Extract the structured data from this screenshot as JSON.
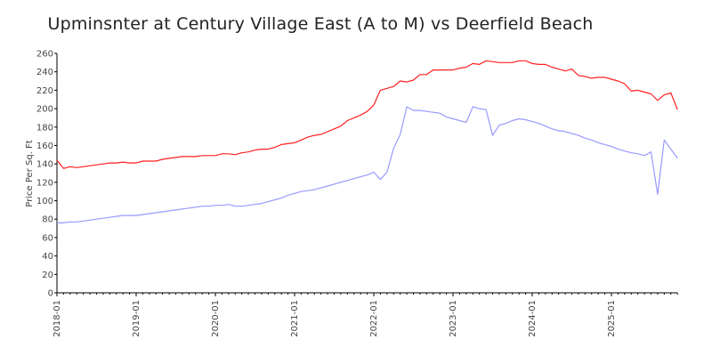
{
  "chart_data": {
    "type": "line",
    "title": "Upminsnter at Century Village East (A to M) vs Deerfield Beach",
    "xlabel": "",
    "ylabel": "Price Per Sq. Ft",
    "ylim": [
      0,
      260
    ],
    "yticks": [
      0,
      20,
      40,
      60,
      80,
      100,
      120,
      140,
      160,
      180,
      200,
      220,
      240,
      260
    ],
    "xticks": [
      "2018-01",
      "2019-01",
      "2020-01",
      "2021-01",
      "2022-01",
      "2023-01",
      "2024-01",
      "2025-01"
    ],
    "x_start": "2018-01",
    "x_interval": "monthly",
    "grid": false,
    "legend": "none",
    "series": [
      {
        "name": "red-series",
        "color": "#ff2020",
        "values": [
          144,
          135,
          137,
          136,
          137,
          138,
          139,
          140,
          141,
          141,
          142,
          141,
          141,
          143,
          143,
          143,
          145,
          146,
          147,
          148,
          148,
          148,
          149,
          149,
          149,
          151,
          151,
          150,
          152,
          153,
          155,
          156,
          156,
          158,
          161,
          162,
          163,
          166,
          169,
          171,
          172,
          175,
          178,
          181,
          187,
          190,
          193,
          197,
          204,
          220,
          222,
          224,
          230,
          229,
          231,
          237,
          237,
          242,
          242,
          242,
          242,
          244,
          245,
          249,
          248,
          252,
          251,
          250,
          250,
          250,
          252,
          252,
          249,
          248,
          248,
          245,
          243,
          241,
          243,
          236,
          235,
          233,
          234,
          234,
          232,
          230,
          227,
          219,
          220,
          218,
          216,
          209,
          215,
          217,
          199
        ]
      },
      {
        "name": "blue-series",
        "color": "#9999ff",
        "values": [
          76,
          76,
          77,
          77,
          78,
          79,
          80,
          81,
          82,
          83,
          84,
          84,
          84,
          85,
          86,
          87,
          88,
          89,
          90,
          91,
          92,
          93,
          94,
          94,
          95,
          95,
          96,
          94,
          94,
          95,
          96,
          97,
          99,
          101,
          103,
          106,
          108,
          110,
          111,
          112,
          114,
          116,
          118,
          120,
          122,
          124,
          126,
          128,
          131,
          123,
          131,
          157,
          172,
          202,
          198,
          198,
          197,
          196,
          195,
          191,
          189,
          187,
          185,
          202,
          200,
          199,
          171,
          182,
          184,
          187,
          189,
          188,
          186,
          184,
          181,
          178,
          176,
          175,
          173,
          171,
          168,
          166,
          163,
          161,
          159,
          156,
          154,
          152,
          151,
          149,
          153,
          107,
          166,
          156,
          146
        ]
      }
    ]
  }
}
